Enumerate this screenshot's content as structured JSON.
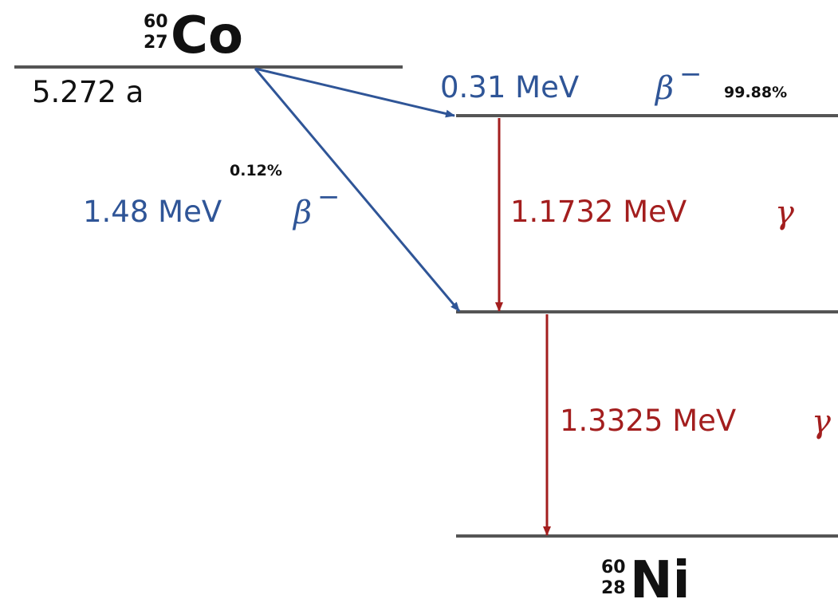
{
  "parent": {
    "mass_number": "60",
    "atomic_number": "27",
    "symbol": "Co",
    "half_life": "5.272 a"
  },
  "daughter": {
    "mass_number": "60",
    "atomic_number": "28",
    "symbol": "Ni"
  },
  "transitions": {
    "beta_high": {
      "energy": "0.31 MeV",
      "particle": "β",
      "superscript": "−",
      "branching": "99.88%"
    },
    "beta_low": {
      "energy": "1.48 MeV",
      "particle": "β",
      "superscript": "−",
      "branching": "0.12%"
    },
    "gamma_upper": {
      "energy": "1.1732 MeV",
      "particle": "γ"
    },
    "gamma_lower": {
      "energy": "1.3325 MeV",
      "particle": "γ"
    }
  },
  "colors": {
    "level_line": "#555555",
    "beta": "#2f5597",
    "gamma": "#a31e1e",
    "text": "#111111"
  }
}
